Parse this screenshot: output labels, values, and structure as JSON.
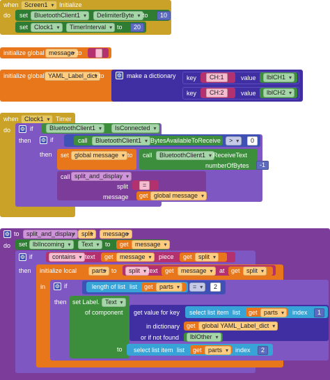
{
  "colors": {
    "event": "#c9a227",
    "set": "#2e7d32",
    "control": "#7e57c2",
    "variable": "#e8761a",
    "dictionary": "#3f2fa3",
    "text": "#b3316e",
    "list": "#38a3d6",
    "component": "#3c8e3c",
    "math": "#3f51b5",
    "procedure": "#7b3d99"
  },
  "screen_init": {
    "when": "when",
    "component": "Screen1",
    "event": "Initialize",
    "do": "do",
    "row1": {
      "set": "set",
      "component": "BluetoothClient1",
      "property": "DelimiterByte",
      "to": "to",
      "value": "10"
    },
    "row2": {
      "set": "set",
      "component": "Clock1",
      "property": "TimerInterval",
      "to": "to",
      "value": "20"
    }
  },
  "global_message": {
    "label": "initialize global",
    "name": "message",
    "to": "to",
    "value": " "
  },
  "global_dict": {
    "label": "initialize global",
    "name": "YAML_Label_dict",
    "to": "to",
    "make": "make a dictionary",
    "pair1": {
      "key": "key",
      "key_value": "CH:1",
      "value": "value",
      "value_block": "lblCH1"
    },
    "pair2": {
      "key": "key",
      "key_value": "CH:2",
      "value": "value",
      "value_block": "lblCH2"
    }
  },
  "clock_timer": {
    "when": "when",
    "component": "Clock1",
    "event": "Timer",
    "do": "do",
    "if1": "if",
    "if1_component": "BluetoothClient1",
    "if1_property": "IsConnected",
    "then1": "then",
    "if2": "if",
    "call": "call",
    "if2_component": "BluetoothClient1",
    "if2_method": "BytesAvailableToReceive",
    "compare_op": ">",
    "compare_value": "0",
    "then2": "then",
    "set_label": "set",
    "set_var": "global message",
    "set_to": "to",
    "receive_call": "call",
    "receive_component": "BluetoothClient1",
    "receive_method": "ReceiveText",
    "bytes_label": "numberOfBytes",
    "bytes_value": "-1",
    "call_proc": "call",
    "proc_name": "split_and_display",
    "split_label": "split",
    "split_value": "=",
    "message_label": "message",
    "get_label": "get",
    "get_var": "global message"
  },
  "procedure": {
    "to": "to",
    "name": "split_and_display",
    "param1": "split",
    "param2": "message",
    "do": "do",
    "set": "set",
    "set_component": "lblIncoming",
    "set_property": "Text",
    "set_to": "to",
    "get": "get",
    "get_message": "message",
    "if": "if",
    "contains": "contains",
    "text_label": "text",
    "piece": "piece",
    "get_split": "split",
    "then": "then",
    "init_local": "initialize local",
    "local_name": "parts",
    "local_to": "to",
    "split_fn": "split",
    "at": "at",
    "in": "in",
    "if_inner": "if",
    "length_label": "length of list",
    "list_label": "list",
    "get_parts": "parts",
    "eq_op": "=",
    "eq_value": "2",
    "then_inner": "then",
    "set_label_text": "set Label.",
    "label_prop": "Text",
    "of_component": "of component",
    "get_value_for_key": "get value for key",
    "select_item": "select list item",
    "list_word": "list",
    "index_label": "index",
    "index1": "1",
    "in_dictionary": "in dictionary",
    "dict_var": "global YAML_Label_dict",
    "or_not_found": "or if not found",
    "fallback": "lblOther",
    "to_label": "to",
    "index2": "2"
  }
}
